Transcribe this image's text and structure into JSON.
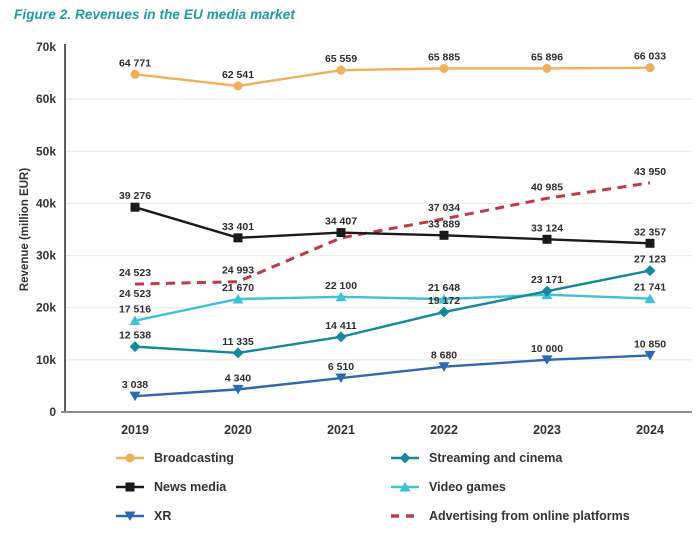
{
  "figure_title": "Figure 2. Revenues in the EU media market",
  "chart_data": {
    "type": "line",
    "title": "Figure 2. Revenues in the EU media market",
    "xlabel": "",
    "ylabel": "Revenue (million EUR)",
    "ylim": [
      0,
      70000
    ],
    "yticks": [
      {
        "value": 0,
        "label": "0"
      },
      {
        "value": 10000,
        "label": "10k"
      },
      {
        "value": 20000,
        "label": "20k"
      },
      {
        "value": 30000,
        "label": "30k"
      },
      {
        "value": 40000,
        "label": "40k"
      },
      {
        "value": 50000,
        "label": "50k"
      },
      {
        "value": 60000,
        "label": "60k"
      },
      {
        "value": 70000,
        "label": "70k"
      }
    ],
    "categories": [
      "2019",
      "2020",
      "2021",
      "2022",
      "2023",
      "2024"
    ],
    "grid": true,
    "legend_position": "bottom",
    "series": [
      {
        "name": "Broadcasting",
        "slug": "broadcasting",
        "color": "#EFAF5B",
        "marker": "circle",
        "line_style": "solid",
        "values": [
          64771,
          62541,
          65559,
          65885,
          65896,
          66033
        ],
        "labels": [
          "64 771",
          "62 541",
          "65 559",
          "65 885",
          "65 896",
          "66 033"
        ]
      },
      {
        "name": "News media",
        "slug": "news-media",
        "color": "#1a1a1a",
        "marker": "square",
        "line_style": "solid",
        "values": [
          39276,
          33401,
          34407,
          33889,
          33124,
          32357
        ],
        "labels": [
          "39 276",
          "33 401",
          "34 407",
          "33 889",
          "33 124",
          "32 357"
        ]
      },
      {
        "name": "XR",
        "slug": "xr",
        "color": "#2d68b0",
        "marker": "triangle-down",
        "line_style": "solid",
        "values": [
          3038,
          4340,
          6510,
          8680,
          10000,
          10850
        ],
        "labels": [
          "3 038",
          "4 340",
          "6 510",
          "8 680",
          "10 000",
          "10 850"
        ]
      },
      {
        "name": "Streaming and cinema",
        "slug": "streaming-and-cinema",
        "color": "#17879b",
        "marker": "diamond",
        "line_style": "solid",
        "values": [
          12538,
          11335,
          14411,
          19172,
          23171,
          27123
        ],
        "labels": [
          "12 538",
          "11 335",
          "14 411",
          "19 172",
          "23 171",
          "27 123"
        ]
      },
      {
        "name": "Video games",
        "slug": "video-games",
        "color": "#3fc0d8",
        "marker": "triangle-up",
        "line_style": "solid",
        "values": [
          17516,
          21670,
          22100,
          21648,
          22500,
          21741
        ],
        "labels": [
          "17 516",
          "21 670",
          "22 100",
          "21 648",
          "",
          "21 741"
        ]
      },
      {
        "name": "Advertising from online platforms",
        "slug": "advertising-from-online-platforms",
        "color": "#c03a45",
        "marker": "none",
        "line_style": "dashed",
        "values": [
          24523,
          24993,
          33400,
          37034,
          40985,
          43950
        ],
        "labels": [
          "24 523",
          "24 993",
          "",
          "37 034",
          "40 985",
          "43 950"
        ],
        "extra_labels": [
          {
            "index": 0,
            "text": "24 523",
            "position": "below"
          }
        ]
      }
    ],
    "legend_columns": [
      [
        0,
        1,
        2
      ],
      [
        3,
        4,
        5
      ]
    ]
  }
}
